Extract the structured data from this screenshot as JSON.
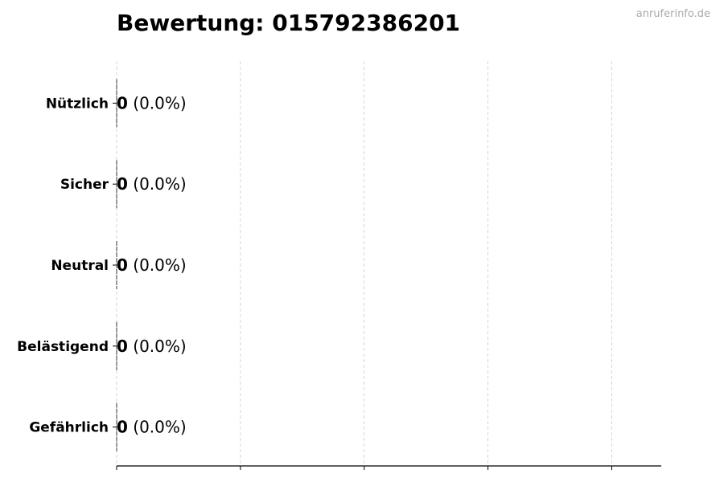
{
  "watermark": "anruferinfo.de",
  "chart_data": {
    "type": "bar",
    "orientation": "horizontal",
    "title": "Bewertung: 015792386201",
    "categories": [
      "Nützlich",
      "Sicher",
      "Neutral",
      "Belästigend",
      "Gefährlich"
    ],
    "values": [
      0,
      0,
      0,
      0,
      0
    ],
    "labels": [
      {
        "count": "0",
        "pct": "(0.0%)"
      },
      {
        "count": "0",
        "pct": "(0.0%)"
      },
      {
        "count": "0",
        "pct": "(0.0%)"
      },
      {
        "count": "0",
        "pct": "(0.0%)"
      },
      {
        "count": "0",
        "pct": "(0.0%)"
      }
    ],
    "xlim": [
      0,
      4.4
    ],
    "xticks": [
      0,
      1,
      2,
      3,
      4
    ],
    "grid": "x, dashed",
    "xlabel": "",
    "ylabel": ""
  }
}
